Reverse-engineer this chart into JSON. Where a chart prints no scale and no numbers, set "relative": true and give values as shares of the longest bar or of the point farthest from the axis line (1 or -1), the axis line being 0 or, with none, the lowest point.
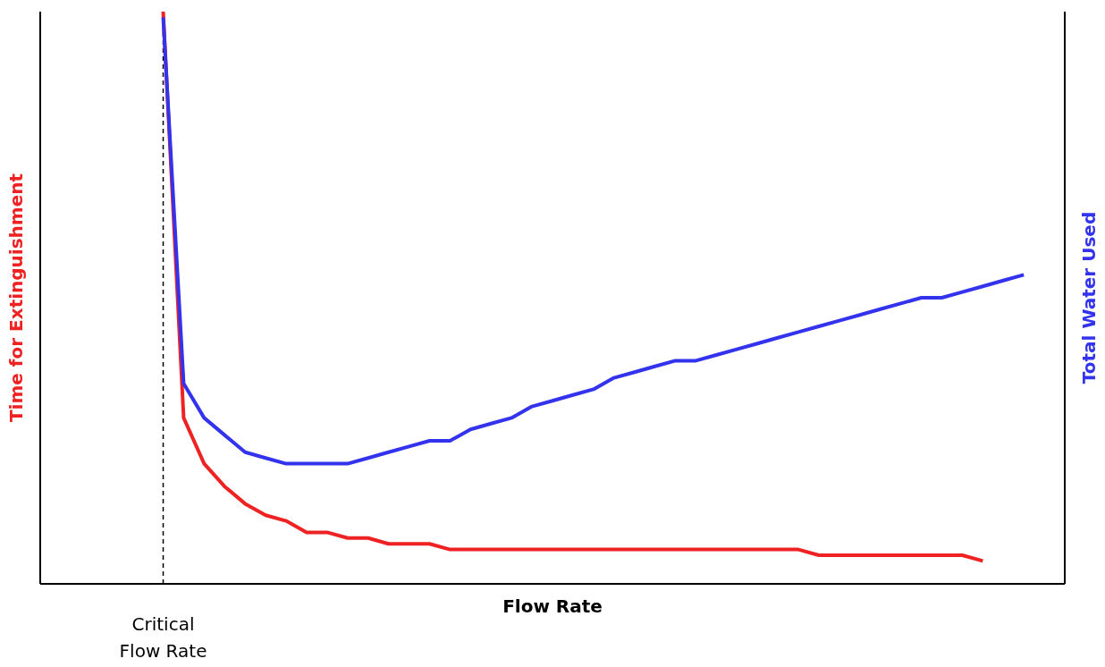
{
  "chart_data": {
    "type": "line",
    "relative": true,
    "xlabel": "Flow Rate",
    "ylabel": "Time for Extinguishment",
    "y2label": "Total Water Used",
    "marker": "none",
    "categories": [
      null,
      null,
      null,
      null,
      null,
      null,
      null,
      null,
      null,
      null,
      null,
      null,
      null,
      null,
      null,
      null,
      null,
      null,
      null,
      null,
      null,
      null,
      null,
      null,
      null,
      null,
      null,
      null,
      null,
      null,
      null,
      null,
      null,
      null,
      null,
      null,
      null,
      null,
      null,
      null,
      null,
      null,
      null,
      null,
      null,
      null,
      null,
      null,
      null,
      null,
      null
    ],
    "series": [
      {
        "color": "#ee2222",
        "values": [
          null,
          null,
          null,
          null,
          null,
          null,
          1,
          0.29,
          0.21,
          0.17,
          0.14,
          0.12,
          0.11,
          0.09,
          0.09,
          0.08,
          0.08,
          0.07,
          0.07,
          0.07,
          0.06,
          0.06,
          0.06,
          0.06,
          0.06,
          0.06,
          0.06,
          0.06,
          0.06,
          0.06,
          0.06,
          0.06,
          0.06,
          0.06,
          0.06,
          0.06,
          0.06,
          0.06,
          0.05,
          0.05,
          0.05,
          0.05,
          0.05,
          0.05,
          0.05,
          0.05,
          0.04,
          null,
          null,
          null,
          null
        ]
      },
      {
        "color": "#3333ee",
        "values": [
          null,
          null,
          null,
          null,
          null,
          null,
          0.99,
          0.35,
          0.29,
          0.26,
          0.23,
          0.22,
          0.21,
          0.21,
          0.21,
          0.21,
          0.22,
          0.23,
          0.24,
          0.25,
          0.25,
          0.27,
          0.28,
          0.29,
          0.31,
          0.32,
          0.33,
          0.34,
          0.36,
          0.37,
          0.38,
          0.39,
          0.39,
          0.4,
          0.41,
          0.42,
          0.43,
          0.44,
          0.45,
          0.46,
          0.47,
          0.48,
          0.49,
          0.5,
          0.5,
          0.51,
          0.52,
          0.53,
          0.54,
          null,
          null
        ]
      }
    ],
    "annotations": [
      "Critical Flow Rate"
    ]
  }
}
